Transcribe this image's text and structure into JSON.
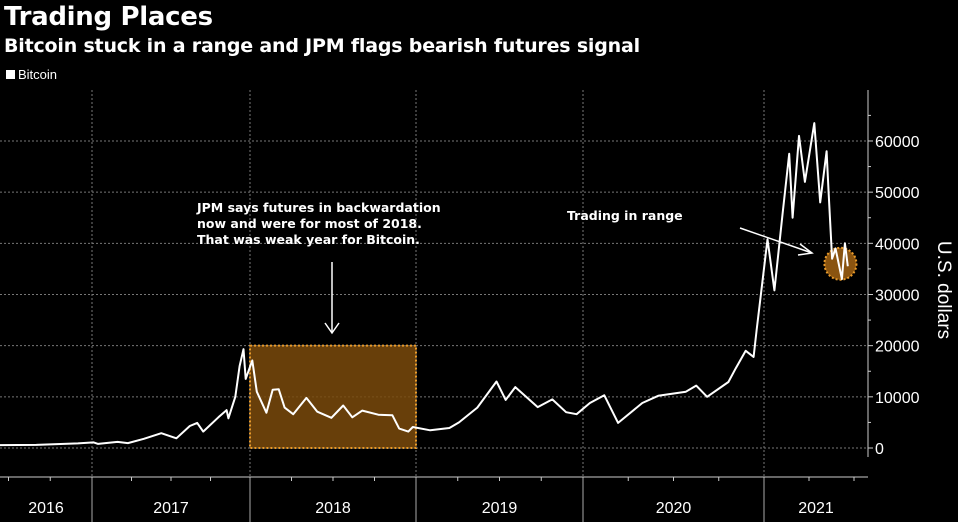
{
  "chart_data": {
    "type": "line",
    "title": "Trading Places",
    "subtitle": "Bitcoin stuck in a range and JPM flags bearish futures signal",
    "ylabel": "U.S. dollars",
    "xlabel": "",
    "ylim": [
      -5000,
      70000
    ],
    "yticks": [
      0,
      10000,
      20000,
      30000,
      40000,
      50000,
      60000
    ],
    "ytick_labels": [
      "0",
      "10000",
      "20000",
      "30000",
      "40000",
      "50000",
      "60000"
    ],
    "xtick_labels": [
      "2016",
      "2017",
      "2018",
      "2019",
      "2020",
      "2021"
    ],
    "grid": true,
    "legend_position": "top-left",
    "colors": {
      "background": "#000000",
      "line": "#ffffff",
      "highlight": "#7a4a0c",
      "highlight_border": "#e89a2a"
    },
    "series": [
      {
        "name": "Bitcoin",
        "x": [
          "2016-06-01",
          "2016-09-01",
          "2016-12-01",
          "2017-01-05",
          "2017-01-15",
          "2017-03-01",
          "2017-03-25",
          "2017-05-01",
          "2017-06-10",
          "2017-07-15",
          "2017-08-15",
          "2017-09-01",
          "2017-09-15",
          "2017-10-20",
          "2017-11-08",
          "2017-11-12",
          "2017-11-28",
          "2017-12-08",
          "2017-12-17",
          "2017-12-22",
          "2018-01-06",
          "2018-01-16",
          "2018-02-06",
          "2018-02-20",
          "2018-03-05",
          "2018-03-18",
          "2018-04-06",
          "2018-05-05",
          "2018-05-29",
          "2018-06-29",
          "2018-07-25",
          "2018-08-14",
          "2018-09-05",
          "2018-10-10",
          "2018-11-10",
          "2018-11-25",
          "2018-12-15",
          "2018-12-25",
          "2019-02-01",
          "2019-03-15",
          "2019-04-05",
          "2019-05-15",
          "2019-06-26",
          "2019-07-16",
          "2019-08-06",
          "2019-09-24",
          "2019-10-26",
          "2019-11-25",
          "2019-12-18",
          "2020-01-15",
          "2020-02-13",
          "2020-03-12",
          "2020-04-30",
          "2020-06-01",
          "2020-07-27",
          "2020-08-17",
          "2020-09-08",
          "2020-10-21",
          "2020-11-05",
          "2020-11-25",
          "2020-12-11",
          "2020-12-17",
          "2021-01-08",
          "2021-01-22",
          "2021-02-08",
          "2021-02-21",
          "2021-02-28",
          "2021-03-13",
          "2021-03-25",
          "2021-04-13",
          "2021-04-25",
          "2021-05-08",
          "2021-05-12",
          "2021-05-19",
          "2021-05-26",
          "2021-06-08",
          "2021-06-14",
          "2021-06-20"
        ],
        "values": [
          550,
          610,
          900,
          1100,
          800,
          1200,
          950,
          1800,
          2900,
          1900,
          4300,
          4900,
          3200,
          6000,
          7400,
          5800,
          10000,
          16000,
          19300,
          13500,
          17100,
          11000,
          6900,
          11400,
          11500,
          7900,
          6600,
          9800,
          7100,
          5900,
          8300,
          6000,
          7300,
          6500,
          6400,
          3800,
          3200,
          4100,
          3450,
          3900,
          5000,
          7900,
          13000,
          9400,
          11900,
          8000,
          9500,
          7000,
          6600,
          8800,
          10300,
          4900,
          8800,
          10200,
          11000,
          12200,
          10000,
          12900,
          15600,
          19000,
          17800,
          23000,
          40800,
          30800,
          46000,
          57500,
          45000,
          61000,
          52000,
          63500,
          48000,
          58000,
          50000,
          37000,
          39000,
          33000,
          40000,
          35500
        ]
      }
    ],
    "highlights": [
      {
        "type": "box",
        "x": [
          "2018-01-01",
          "2019-01-01"
        ],
        "y": [
          0,
          20000
        ]
      },
      {
        "type": "circle",
        "x": "2021-06-05",
        "y": 36000
      }
    ],
    "annotations": [
      {
        "lines": [
          "JPM says futures in backwardation",
          "now and were for most of 2018.",
          "That was weak year for Bitcoin."
        ]
      },
      {
        "lines": [
          "Trading in range"
        ]
      }
    ]
  }
}
